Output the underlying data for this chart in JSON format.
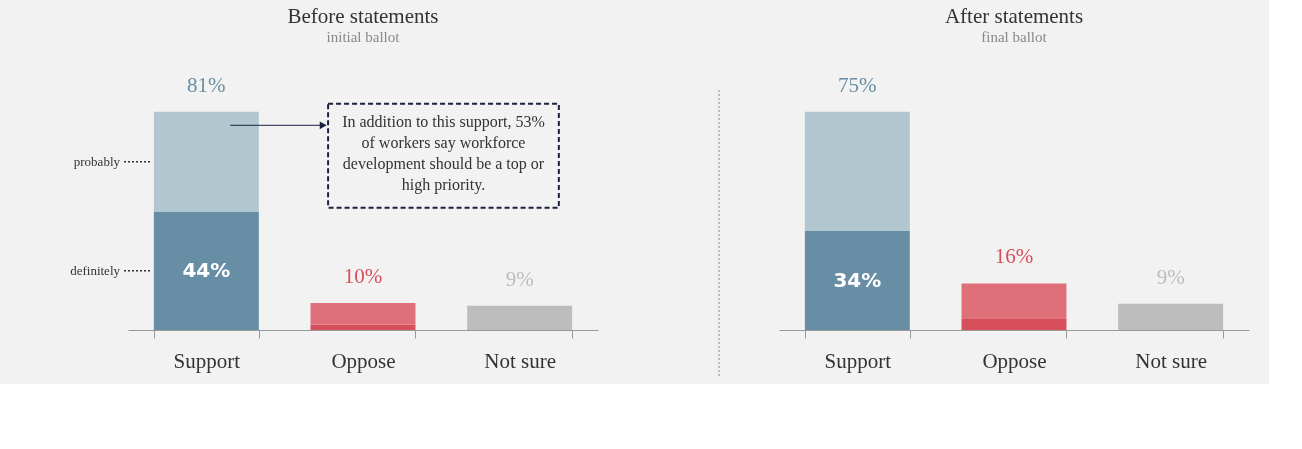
{
  "chart_data": [
    {
      "type": "bar",
      "stacked": true,
      "title": "Before statements",
      "subtitle": "initial ballot",
      "categories": [
        "Support",
        "Oppose",
        "Not sure"
      ],
      "tick_labels": "x",
      "grid": false,
      "series": [
        {
          "name": "definitely",
          "values": [
            44,
            2,
            9
          ],
          "colors": [
            "#688ea5",
            "#d74f5b",
            "#bdbdbd"
          ],
          "value_labels": [
            "44%",
            null,
            null
          ]
        },
        {
          "name": "probably",
          "values": [
            37,
            8,
            null
          ],
          "colors": [
            "#b2c6cf",
            "#df7079",
            "#bdbdbd"
          ]
        }
      ],
      "totals": [
        "81%",
        "10%",
        "9%"
      ],
      "annotations": [
        "In addition to this support, 53% of workers say workforce development should be a top or high priority."
      ]
    },
    {
      "type": "bar",
      "stacked": true,
      "title": "After statements",
      "subtitle": "final ballot",
      "categories": [
        "Support",
        "Oppose",
        "Not sure"
      ],
      "tick_labels": "x",
      "grid": false,
      "series": [
        {
          "values": [
            34,
            4,
            9
          ],
          "colors": [
            "#688ea5",
            "#d74f5b",
            "#bdbdbd"
          ],
          "value_labels": [
            "34%",
            null,
            null
          ]
        },
        {
          "values": [
            41,
            12,
            null
          ],
          "colors": [
            "#b2c6cf",
            "#df7079",
            "#bdbdbd"
          ]
        }
      ],
      "totals": [
        "75%",
        "16%",
        "9%"
      ]
    }
  ]
}
